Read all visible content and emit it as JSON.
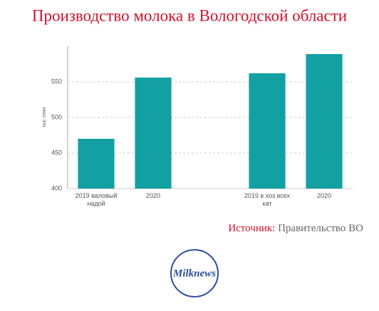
{
  "chart_data": {
    "type": "bar",
    "title": "Производство молока в Вологодской области",
    "y_label": "тыс.тонн",
    "categories": [
      "2019 валовый надой",
      "2020",
      null,
      "2019 в хоз всех кат",
      "2020"
    ],
    "values": [
      470,
      556,
      null,
      562,
      589
    ],
    "color": "#12a0a3",
    "ylim": [
      400,
      600
    ],
    "yticks": [
      400,
      450,
      500,
      550
    ],
    "grid": true
  },
  "source": {
    "label": "Источник:",
    "text": "Правительство ВО"
  },
  "logo": "Milknews"
}
